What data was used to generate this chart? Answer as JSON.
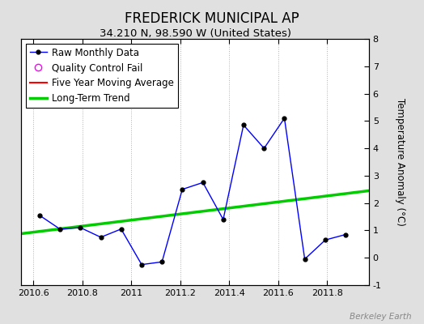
{
  "title": "FREDERICK MUNICIPAL AP",
  "subtitle": "34.210 N, 98.590 W (United States)",
  "ylabel_right": "Temperature Anomaly (°C)",
  "watermark": "Berkeley Earth",
  "xlim": [
    2010.55,
    2011.97
  ],
  "ylim": [
    -1,
    8
  ],
  "yticks": [
    -1,
    0,
    1,
    2,
    3,
    4,
    5,
    6,
    7,
    8
  ],
  "xticks": [
    2010.6,
    2010.8,
    2011.0,
    2011.2,
    2011.4,
    2011.6,
    2011.8
  ],
  "xtick_labels": [
    "2010.6",
    "2010.8",
    "2011",
    "2011.2",
    "2011.4",
    "2011.6",
    "2011.8"
  ],
  "raw_x": [
    2010.625,
    2010.708,
    2010.792,
    2010.875,
    2010.958,
    2011.042,
    2011.125,
    2011.208,
    2011.292,
    2011.375,
    2011.458,
    2011.542,
    2011.625,
    2011.708,
    2011.792,
    2011.875
  ],
  "raw_y": [
    1.55,
    1.05,
    1.1,
    0.75,
    1.05,
    -0.25,
    -0.15,
    2.5,
    2.75,
    1.4,
    4.85,
    4.0,
    5.1,
    -0.05,
    0.65,
    0.85
  ],
  "trend_x": [
    2010.55,
    2011.97
  ],
  "trend_y": [
    0.88,
    2.45
  ],
  "raw_color": "#0000ff",
  "trend_color": "#00cc00",
  "moving_avg_color": "#ff0000",
  "bg_color": "#e0e0e0",
  "plot_bg_color": "#ffffff",
  "grid_color": "#b0b0b0",
  "title_fontsize": 12,
  "subtitle_fontsize": 9.5,
  "legend_fontsize": 8.5,
  "axis_fontsize": 8
}
